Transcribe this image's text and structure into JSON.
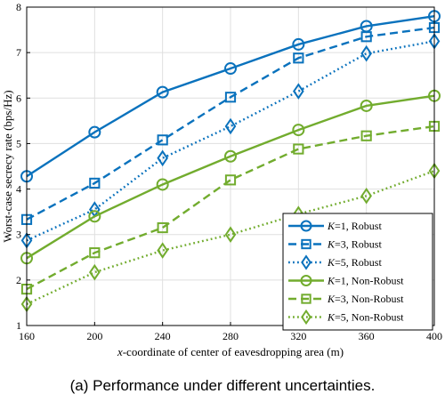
{
  "chart_data": {
    "type": "line",
    "xlabel_italic": "x",
    "xlabel_rest": "-coordinate of center of eavesdropping area (m)",
    "ylabel": "Worst-case secrecy rate  (bps/Hz)",
    "x": [
      160,
      200,
      240,
      280,
      320,
      360,
      400
    ],
    "xlim": [
      160,
      400
    ],
    "ylim": [
      1,
      8
    ],
    "xticks": [
      160,
      200,
      240,
      280,
      320,
      360,
      400
    ],
    "yticks": [
      1,
      2,
      3,
      4,
      5,
      6,
      7,
      8
    ],
    "grid": true,
    "legend_position": "bottom-right",
    "series": [
      {
        "k": "K",
        "name": "=1, Robust",
        "color": "#0a72bd",
        "line": "solid",
        "marker": "circle",
        "values": [
          4.28,
          5.25,
          6.13,
          6.65,
          7.18,
          7.58,
          7.8
        ]
      },
      {
        "k": "K",
        "name": "=3, Robust",
        "color": "#0a72bd",
        "line": "dashed",
        "marker": "square",
        "values": [
          3.33,
          4.13,
          5.08,
          6.02,
          6.88,
          7.35,
          7.55
        ]
      },
      {
        "k": "K",
        "name": "=5, Robust",
        "color": "#0a72bd",
        "line": "dotted",
        "marker": "diamond",
        "values": [
          2.87,
          3.55,
          4.68,
          5.38,
          6.15,
          6.98,
          7.25
        ]
      },
      {
        "k": "K",
        "name": "=1, Non-Robust",
        "color": "#72ac2e",
        "line": "solid",
        "marker": "circle",
        "values": [
          2.48,
          3.4,
          4.1,
          4.72,
          5.3,
          5.83,
          6.05
        ]
      },
      {
        "k": "K",
        "name": "=3, Non-Robust",
        "color": "#72ac2e",
        "line": "dashed",
        "marker": "square",
        "values": [
          1.8,
          2.6,
          3.15,
          4.2,
          4.88,
          5.17,
          5.38
        ]
      },
      {
        "k": "K",
        "name": "=5, Non-Robust",
        "color": "#72ac2e",
        "line": "dotted",
        "marker": "diamond",
        "values": [
          1.47,
          2.17,
          2.65,
          3.0,
          3.45,
          3.85,
          4.4
        ]
      }
    ]
  },
  "caption": "(a) Performance under different uncertainties."
}
